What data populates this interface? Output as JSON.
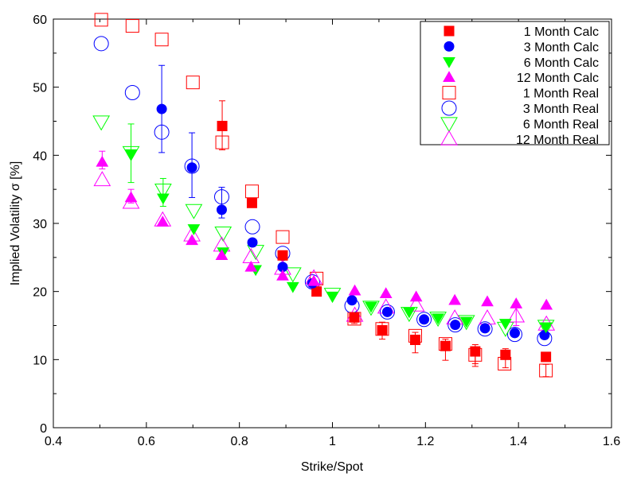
{
  "chart_data": {
    "type": "scatter",
    "xlabel": "Strike/Spot",
    "ylabel": "Implied Volatility σ [%]",
    "xlim": [
      0.4,
      1.6
    ],
    "ylim": [
      0,
      60
    ],
    "xticks": [
      "0.4",
      "0.6",
      "0.8",
      "1",
      "1.2",
      "1.4",
      "1.6"
    ],
    "xtick_values": [
      0.4,
      0.6,
      0.8,
      1.0,
      1.2,
      1.4,
      1.6
    ],
    "yticks": [
      "0",
      "10",
      "20",
      "30",
      "40",
      "50",
      "60"
    ],
    "ytick_values": [
      0,
      10,
      20,
      30,
      40,
      50,
      60
    ],
    "grid": false,
    "legend_position": "top-right",
    "series": [
      {
        "name": "1 Month Calc",
        "marker": "square-filled",
        "color": "#ff0000",
        "points": [
          [
            0.763,
            44.3
          ],
          [
            0.827,
            33.0
          ],
          [
            0.893,
            25.3
          ],
          [
            0.966,
            20.0
          ],
          [
            1.047,
            16.2
          ],
          [
            1.107,
            14.3
          ],
          [
            1.178,
            12.9
          ],
          [
            1.243,
            12.0
          ],
          [
            1.307,
            11.2
          ],
          [
            1.372,
            10.7
          ],
          [
            1.459,
            10.4
          ]
        ],
        "errors": [
          [
            1.047,
            15.3,
            16.8
          ],
          [
            1.107,
            13.0,
            15.5
          ],
          [
            1.178,
            11.0,
            14.0
          ],
          [
            1.243,
            9.9,
            13.0
          ],
          [
            1.307,
            9.0,
            12.2
          ],
          [
            1.372,
            8.8,
            11.6
          ]
        ]
      },
      {
        "name": "3 Month Calc",
        "marker": "circle-filled",
        "color": "#0000ff",
        "points": [
          [
            0.633,
            46.8
          ],
          [
            0.698,
            38.2
          ],
          [
            0.762,
            32.0
          ],
          [
            0.828,
            27.2
          ],
          [
            0.893,
            23.6
          ],
          [
            0.957,
            21.2
          ],
          [
            1.042,
            18.7
          ],
          [
            1.118,
            17.0
          ],
          [
            1.197,
            15.9
          ],
          [
            1.264,
            15.1
          ],
          [
            1.328,
            14.6
          ],
          [
            1.392,
            13.9
          ],
          [
            1.456,
            13.6
          ]
        ],
        "errors": [
          [
            0.633,
            40.4,
            53.2
          ],
          [
            0.698,
            33.8,
            43.3
          ],
          [
            0.762,
            30.8,
            35.3
          ]
        ]
      },
      {
        "name": "6 Month Calc",
        "marker": "triangle-down-filled",
        "color": "#00ff00",
        "points": [
          [
            0.567,
            40.2
          ],
          [
            0.636,
            33.7
          ],
          [
            0.702,
            29.2
          ],
          [
            0.765,
            25.8
          ],
          [
            0.835,
            23.2
          ],
          [
            0.915,
            20.7
          ],
          [
            1.0,
            19.3
          ],
          [
            1.083,
            17.8
          ],
          [
            1.165,
            17.0
          ],
          [
            1.227,
            16.1
          ],
          [
            1.288,
            15.6
          ],
          [
            1.372,
            15.3
          ],
          [
            1.459,
            14.8
          ]
        ],
        "errors": [
          [
            0.567,
            36.0,
            44.6
          ],
          [
            0.636,
            32.5,
            36.6
          ]
        ]
      },
      {
        "name": "12 Month Calc",
        "marker": "triangle-up-filled",
        "color": "#ff00ff",
        "points": [
          [
            0.505,
            39.0
          ],
          [
            0.567,
            33.8
          ],
          [
            0.635,
            30.2
          ],
          [
            0.698,
            27.5
          ],
          [
            0.762,
            25.3
          ],
          [
            0.825,
            23.6
          ],
          [
            0.893,
            22.3
          ],
          [
            0.96,
            21.5
          ],
          [
            1.048,
            20.1
          ],
          [
            1.115,
            19.7
          ],
          [
            1.18,
            19.2
          ],
          [
            1.263,
            18.7
          ],
          [
            1.333,
            18.5
          ],
          [
            1.395,
            18.2
          ],
          [
            1.46,
            18.0
          ]
        ],
        "errors": [
          [
            0.505,
            38.0,
            40.6
          ],
          [
            0.567,
            33.0,
            35.0
          ]
        ]
      },
      {
        "name": "1 Month Real",
        "marker": "square-open",
        "color": "#ff0000",
        "points": [
          [
            0.503,
            59.9
          ],
          [
            0.57,
            59.0
          ],
          [
            0.633,
            57.0
          ],
          [
            0.7,
            50.7
          ],
          [
            0.763,
            41.9
          ],
          [
            0.827,
            34.7
          ],
          [
            0.893,
            28.0
          ],
          [
            0.966,
            21.9
          ],
          [
            1.047,
            16.0
          ],
          [
            1.107,
            14.5
          ],
          [
            1.178,
            13.5
          ],
          [
            1.243,
            12.3
          ],
          [
            1.307,
            10.7
          ],
          [
            1.37,
            9.4
          ],
          [
            1.459,
            8.4
          ]
        ],
        "errors": [
          [
            0.763,
            40.8,
            48.0
          ],
          [
            1.307,
            9.4,
            11.8
          ],
          [
            1.459,
            7.5,
            9.3
          ]
        ]
      },
      {
        "name": "3 Month Real",
        "marker": "circle-open",
        "color": "#0000ff",
        "points": [
          [
            0.503,
            56.4
          ],
          [
            0.57,
            49.2
          ],
          [
            0.633,
            43.4
          ],
          [
            0.698,
            38.4
          ],
          [
            0.762,
            33.9
          ],
          [
            0.828,
            29.5
          ],
          [
            0.893,
            25.6
          ],
          [
            0.957,
            21.4
          ],
          [
            1.042,
            17.9
          ],
          [
            1.118,
            17.0
          ],
          [
            1.197,
            15.9
          ],
          [
            1.264,
            15.1
          ],
          [
            1.328,
            14.5
          ],
          [
            1.392,
            13.7
          ],
          [
            1.456,
            13.1
          ]
        ],
        "errors": []
      },
      {
        "name": "6 Month Real",
        "marker": "triangle-down-open",
        "color": "#00ff00",
        "points": [
          [
            0.503,
            44.9
          ],
          [
            0.567,
            40.4
          ],
          [
            0.636,
            34.9
          ],
          [
            0.702,
            31.9
          ],
          [
            0.765,
            28.6
          ],
          [
            0.835,
            25.9
          ],
          [
            0.915,
            22.6
          ],
          [
            1.0,
            19.6
          ],
          [
            1.083,
            17.7
          ],
          [
            1.165,
            16.8
          ],
          [
            1.227,
            16.1
          ],
          [
            1.288,
            15.6
          ],
          [
            1.372,
            14.6
          ],
          [
            1.459,
            14.9
          ]
        ],
        "errors": []
      },
      {
        "name": "12 Month Real",
        "marker": "triangle-up-open",
        "color": "#ff00ff",
        "points": [
          [
            0.505,
            36.4
          ],
          [
            0.567,
            33.1
          ],
          [
            0.635,
            30.5
          ],
          [
            0.698,
            28.3
          ],
          [
            0.762,
            26.8
          ],
          [
            0.825,
            25.1
          ],
          [
            0.893,
            23.4
          ],
          [
            0.96,
            22.0
          ],
          [
            1.048,
            16.5
          ],
          [
            1.115,
            17.7
          ],
          [
            1.18,
            18.0
          ],
          [
            1.263,
            16.1
          ],
          [
            1.333,
            16.1
          ],
          [
            1.395,
            16.4
          ],
          [
            1.46,
            15.2
          ]
        ],
        "errors": [
          [
            1.395,
            15.0,
            17.8
          ]
        ]
      }
    ]
  }
}
